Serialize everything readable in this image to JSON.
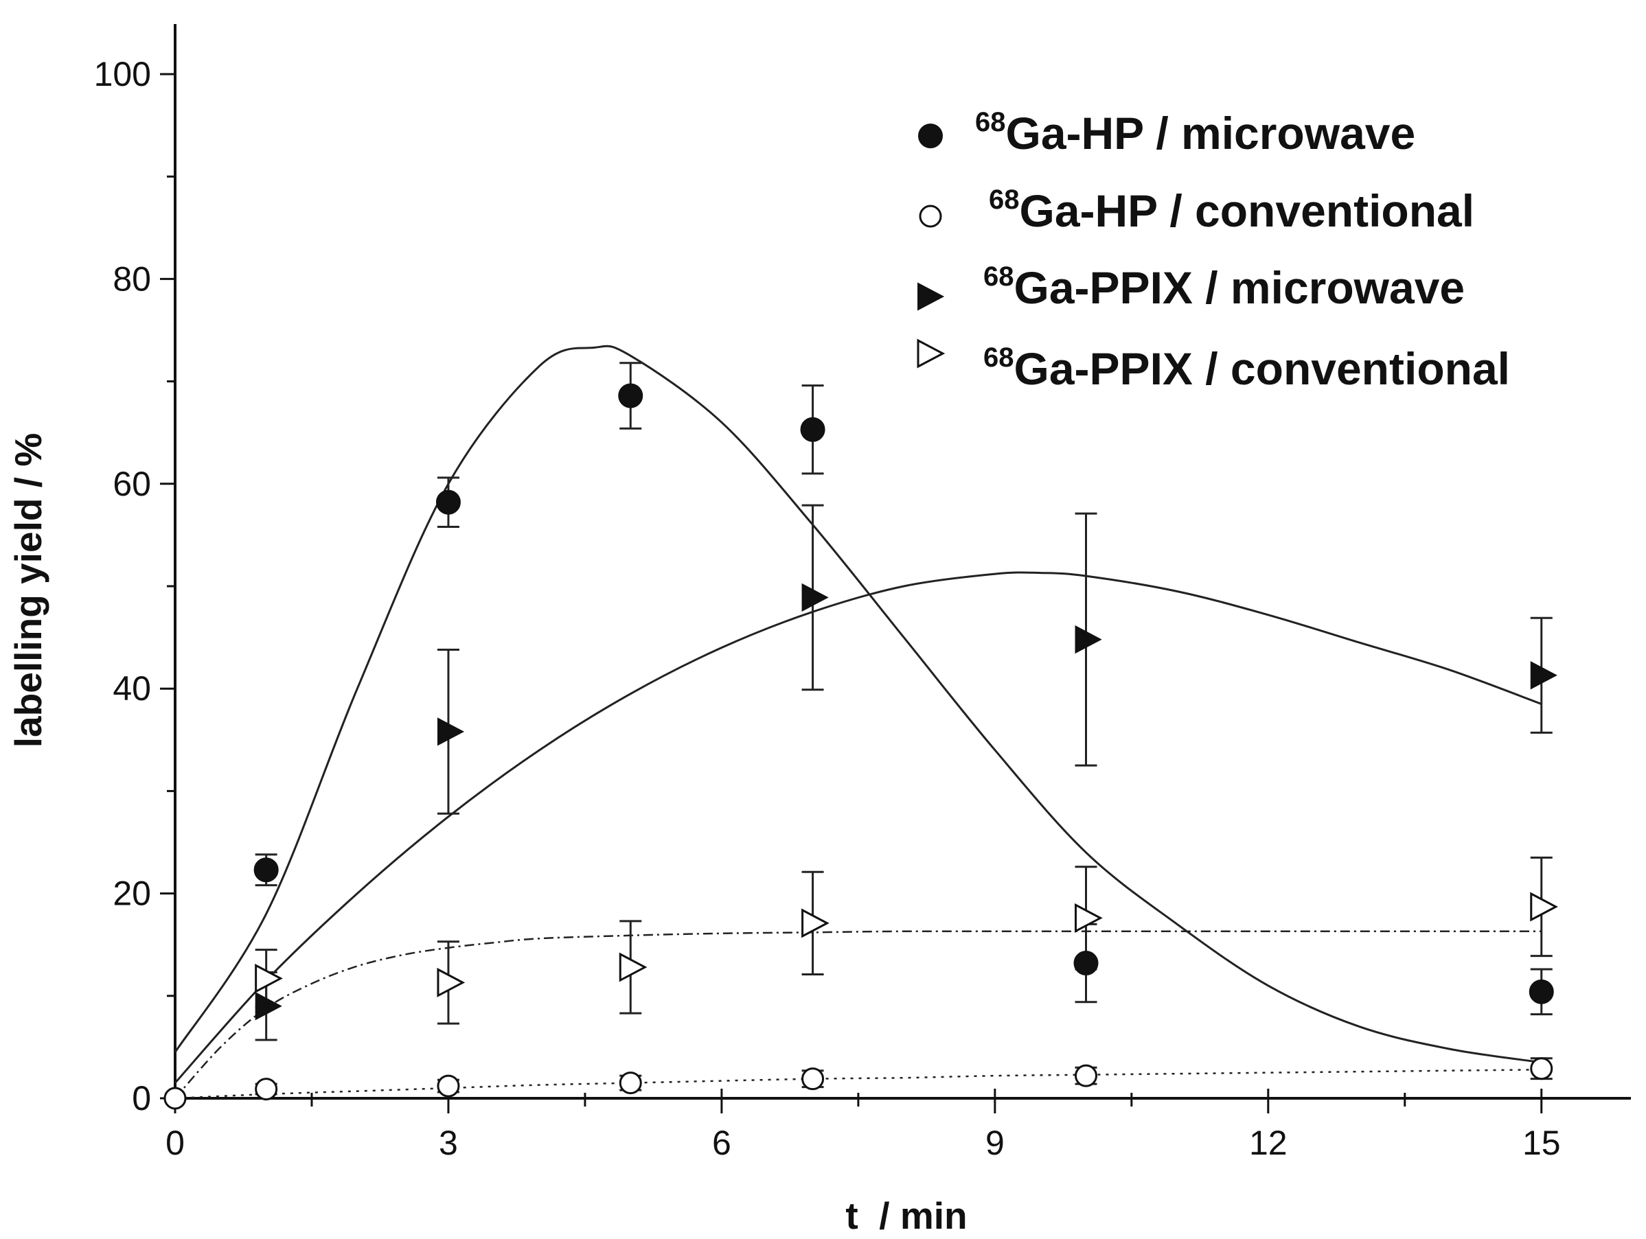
{
  "chart_data": {
    "type": "scatter",
    "title": "",
    "xlabel": "t  / min",
    "ylabel": "labelling yield / %",
    "xlim": [
      0,
      16
    ],
    "ylim": [
      0,
      100
    ],
    "xticks": [
      "0",
      "3",
      "6",
      "9",
      "12",
      "15"
    ],
    "yticks": [
      "0",
      "20",
      "40",
      "60",
      "80",
      "100"
    ],
    "legend_position": "top-right",
    "series": [
      {
        "key": "ga_hp_microwave",
        "name": "Ga-HP / microwave",
        "isotope": "68",
        "marker": "filled-circle",
        "x": [
          1,
          3,
          5,
          7,
          10,
          15
        ],
        "y": [
          22.3,
          58.2,
          68.6,
          65.3,
          13.2,
          10.4
        ],
        "err": [
          1.5,
          2.4,
          3.2,
          4.3,
          3.8,
          2.2
        ],
        "fit": {
          "style": "solid",
          "x": [
            0,
            1,
            2,
            3,
            4,
            4.6,
            5,
            6,
            7,
            8,
            9,
            10,
            11,
            12,
            13,
            14,
            15
          ],
          "y": [
            4.5,
            18,
            40,
            60,
            71.5,
            73.3,
            72.5,
            66,
            56,
            45,
            34,
            24,
            17,
            11,
            7,
            4.8,
            3.5
          ]
        }
      },
      {
        "key": "ga_hp_conventional",
        "name": "Ga-HP / conventional",
        "isotope": "68",
        "marker": "open-circle",
        "x": [
          0,
          1,
          3,
          5,
          7,
          10,
          15
        ],
        "y": [
          0,
          0.9,
          1.2,
          1.5,
          1.9,
          2.2,
          2.9
        ],
        "err": [
          0,
          0.5,
          0.6,
          0.7,
          0.8,
          0.8,
          1.0
        ],
        "fit": {
          "style": "dotted",
          "x": [
            0,
            1,
            2,
            3,
            4,
            5,
            6,
            7,
            8,
            9,
            10,
            11,
            12,
            13,
            14,
            15
          ],
          "y": [
            0,
            0.4,
            0.7,
            1.0,
            1.3,
            1.5,
            1.7,
            1.9,
            2.0,
            2.2,
            2.3,
            2.4,
            2.5,
            2.6,
            2.7,
            2.8
          ]
        }
      },
      {
        "key": "ga_ppix_microwave",
        "name": "Ga-PPIX / microwave",
        "isotope": "68",
        "marker": "filled-triangle",
        "x": [
          1,
          3,
          7,
          10,
          15
        ],
        "y": [
          9.0,
          35.8,
          48.9,
          44.8,
          41.3
        ],
        "err": [
          3.3,
          8.0,
          9.0,
          12.3,
          5.6
        ],
        "fit": {
          "style": "solid",
          "x": [
            0,
            1,
            2,
            3,
            4,
            5,
            6,
            7,
            8,
            9,
            9.5,
            10,
            11,
            12,
            13,
            14,
            15
          ],
          "y": [
            1.5,
            11.5,
            20,
            27.5,
            34,
            39.5,
            44,
            47.5,
            50,
            51.2,
            51.3,
            51,
            49.5,
            47.2,
            44.5,
            41.8,
            38.5
          ]
        }
      },
      {
        "key": "ga_ppix_conventional",
        "name": "Ga-PPIX / conventional",
        "isotope": "68",
        "marker": "open-triangle",
        "x": [
          1,
          3,
          5,
          7,
          10,
          15
        ],
        "y": [
          11.7,
          11.3,
          12.8,
          17.1,
          17.6,
          18.7
        ],
        "err": [
          2.8,
          4.0,
          4.5,
          5.0,
          5.0,
          4.8
        ],
        "fit": {
          "style": "dash-dot",
          "x": [
            0,
            0.5,
            1,
            1.5,
            2,
            2.5,
            3,
            3.5,
            4,
            5,
            6,
            7,
            8,
            10,
            12,
            15
          ],
          "y": [
            0,
            5,
            8.8,
            11.2,
            12.9,
            14.0,
            14.7,
            15.2,
            15.6,
            15.9,
            16.1,
            16.2,
            16.3,
            16.3,
            16.3,
            16.3
          ]
        }
      }
    ]
  }
}
